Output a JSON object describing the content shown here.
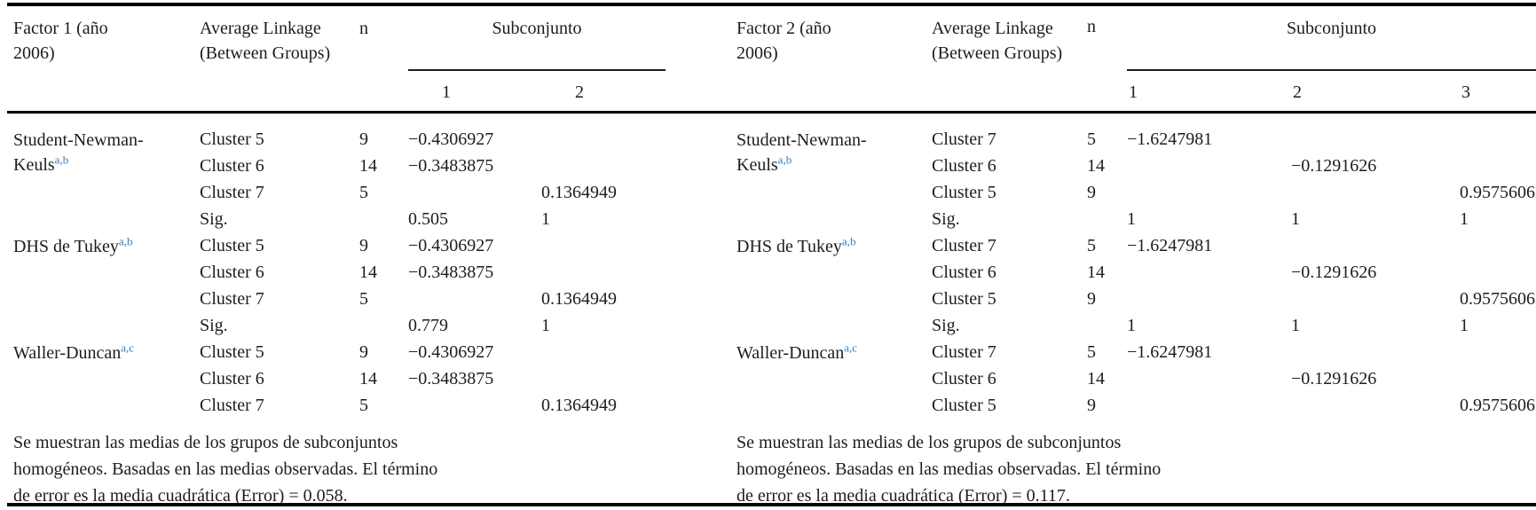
{
  "colors": {
    "accent_blue": "#3579b8",
    "text": "#1d1d1f",
    "rule": "#000000",
    "background": "#ffffff"
  },
  "panels": [
    {
      "factor_label": "Factor 1 (año 2006)",
      "linkage_label": "Average Linkage (Between Groups)",
      "n_label": "n",
      "subset_label": "Subconjunto",
      "subset_cols": [
        "1",
        "2"
      ],
      "rows": [
        {
          "method": "Student-Newman-Keuls",
          "sup": "a,b",
          "span": 4,
          "cluster": "Cluster 5",
          "n": "9",
          "s": [
            "−0.4306927",
            ""
          ]
        },
        {
          "cluster": "Cluster 6",
          "n": "14",
          "s": [
            "−0.3483875",
            ""
          ]
        },
        {
          "cluster": "Cluster 7",
          "n": "5",
          "s": [
            "",
            "0.1364949"
          ]
        },
        {
          "cluster": "Sig.",
          "n": "",
          "s": [
            "0.505",
            "1"
          ]
        },
        {
          "method": "DHS de Tukey",
          "sup": "a,b",
          "span": 4,
          "cluster": "Cluster 5",
          "n": "9",
          "s": [
            "−0.4306927",
            ""
          ]
        },
        {
          "cluster": "Cluster 6",
          "n": "14",
          "s": [
            "−0.3483875",
            ""
          ]
        },
        {
          "cluster": "Cluster 7",
          "n": "5",
          "s": [
            "",
            "0.1364949"
          ]
        },
        {
          "cluster": "Sig.",
          "n": "",
          "s": [
            "0.779",
            "1"
          ]
        },
        {
          "method": "Waller-Duncan",
          "sup": "a,c",
          "span": 3,
          "cluster": "Cluster 5",
          "n": "9",
          "s": [
            "−0.4306927",
            ""
          ]
        },
        {
          "cluster": "Cluster 6",
          "n": "14",
          "s": [
            "−0.3483875",
            ""
          ]
        },
        {
          "cluster": "Cluster 7",
          "n": "5",
          "s": [
            "",
            "0.1364949"
          ]
        }
      ],
      "footnote_lines": [
        "Se muestran las medias de los grupos de subconjuntos",
        "homogéneos. Basadas en las medias observadas. El término",
        "de error es la media cuadrática (Error) = 0.058."
      ]
    },
    {
      "factor_label": "Factor 2 (año 2006)",
      "linkage_label": "Average Linkage (Between Groups)",
      "n_label": "n",
      "subset_label": "Subconjunto",
      "subset_cols": [
        "1",
        "2",
        "3"
      ],
      "rows": [
        {
          "method": "Student-Newman-Keuls",
          "sup": "a,b",
          "span": 4,
          "cluster": "Cluster 7",
          "n": "5",
          "s": [
            "−1.6247981",
            "",
            ""
          ]
        },
        {
          "cluster": "Cluster 6",
          "n": "14",
          "s": [
            "",
            "−0.1291626",
            ""
          ]
        },
        {
          "cluster": "Cluster 5",
          "n": "9",
          "s": [
            "",
            "",
            "0.9575606"
          ]
        },
        {
          "cluster": "Sig.",
          "n": "",
          "s": [
            "1",
            "1",
            "1"
          ]
        },
        {
          "method": "DHS de Tukey",
          "sup": "a,b",
          "span": 4,
          "cluster": "Cluster 7",
          "n": "5",
          "s": [
            "−1.6247981",
            "",
            ""
          ]
        },
        {
          "cluster": "Cluster 6",
          "n": "14",
          "s": [
            "",
            "−0.1291626",
            ""
          ]
        },
        {
          "cluster": "Cluster 5",
          "n": "9",
          "s": [
            "",
            "",
            "0.9575606"
          ]
        },
        {
          "cluster": "Sig.",
          "n": "",
          "s": [
            "1",
            "1",
            "1"
          ]
        },
        {
          "method": "Waller-Duncan",
          "sup": "a,c",
          "span": 3,
          "cluster": "Cluster 7",
          "n": "5",
          "s": [
            "−1.6247981",
            "",
            ""
          ]
        },
        {
          "cluster": "Cluster 6",
          "n": "14",
          "s": [
            "",
            "−0.1291626",
            ""
          ]
        },
        {
          "cluster": "Cluster 5",
          "n": "9",
          "s": [
            "",
            "",
            "0.9575606"
          ]
        }
      ],
      "footnote_lines": [
        "Se muestran las medias de los grupos de subconjuntos",
        "homogéneos. Basadas en las medias observadas. El término",
        "de error es la media cuadrática (Error) = 0.117."
      ]
    }
  ]
}
